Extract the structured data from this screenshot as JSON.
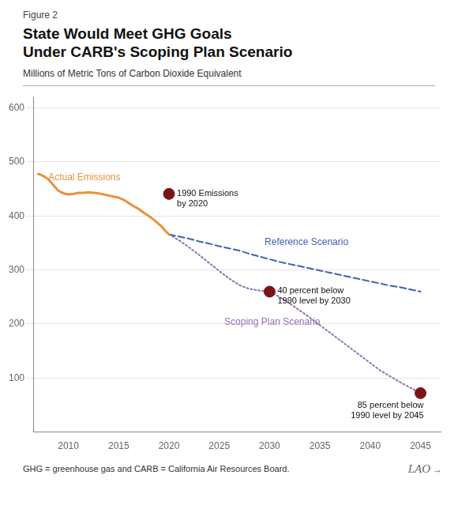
{
  "chart_data": {
    "type": "line",
    "figure_label": "Figure 2",
    "title": "State Would Meet GHG Goals\nUnder CARB's Scoping Plan Scenario",
    "subtitle": "Millions of Metric Tons of Carbon Dioxide Equivalent",
    "footnote": "GHG = greenhouse gas and CARB = California Air Resources Board.",
    "logo": "LAO",
    "logo_mark": "→",
    "series": [
      {
        "name": "Actual Emissions",
        "color": "#e8923c",
        "line_style": "solid",
        "x": [
          2007,
          2007.3,
          2007.7,
          2008,
          2008.3,
          2008.7,
          2009,
          2009.3,
          2009.7,
          2010,
          2010.5,
          2011,
          2011.5,
          2012,
          2012.5,
          2013,
          2013.5,
          2014,
          2014.5,
          2015,
          2015.5,
          2016,
          2016.5,
          2017,
          2017.5,
          2018,
          2018.5,
          2019,
          2019.3,
          2019.6,
          2020
        ],
        "values": [
          478,
          476,
          472,
          468,
          462,
          453,
          447,
          444,
          441,
          440,
          441,
          443,
          443,
          444,
          443,
          442,
          440,
          438,
          436,
          434,
          430,
          424,
          418,
          413,
          406,
          400,
          393,
          385,
          380,
          373,
          366
        ],
        "label_x": 2008.0,
        "label_y": 463
      },
      {
        "name": "Reference Scenario",
        "color": "#4060b8",
        "line_style": "dashed",
        "x": [
          2020,
          2021,
          2022,
          2023,
          2024,
          2025,
          2026,
          2027,
          2028,
          2029,
          2030,
          2031,
          2032,
          2033,
          2034,
          2035,
          2036,
          2037,
          2038,
          2039,
          2040,
          2041,
          2042,
          2043,
          2044,
          2045
        ],
        "values": [
          366,
          362,
          358,
          353,
          349,
          344,
          340,
          336,
          330,
          325,
          320,
          315,
          311,
          307,
          303,
          299,
          295,
          291,
          287,
          283,
          279,
          275,
          271,
          268,
          264,
          260
        ],
        "label_x": 2029.5,
        "label_y": 342
      },
      {
        "name": "Scoping Plan Scenario",
        "color": "#9070b0",
        "line_style": "dotted",
        "x": [
          2020,
          2021,
          2022,
          2023,
          2024,
          2025,
          2026,
          2027,
          2028,
          2029,
          2030,
          2031,
          2032,
          2033,
          2034,
          2035,
          2036,
          2037,
          2038,
          2039,
          2040,
          2041,
          2042,
          2043,
          2044,
          2045
        ],
        "values": [
          366,
          355,
          342,
          328,
          313,
          298,
          284,
          272,
          265,
          262,
          260,
          250,
          238,
          225,
          212,
          198,
          184,
          170,
          156,
          142,
          128,
          114,
          103,
          92,
          82,
          72
        ],
        "label_x": 2025.5,
        "label_y": 195
      },
      {
        "type": "scatter",
        "marker": "circle",
        "color": "#7a1515",
        "x": [
          2020,
          2030,
          2045
        ],
        "values": [
          441,
          260,
          72
        ],
        "labels": [
          "1990 Emissions\nby 2020",
          "40 percent below\n1990 level by 2030",
          "85 percent below\n1990 level by 2045"
        ]
      }
    ],
    "xlim": [
      2006.5,
      2047
    ],
    "xticks": [
      2010,
      2015,
      2020,
      2025,
      2030,
      2035,
      2040,
      2045
    ],
    "ylim": [
      0,
      620
    ],
    "yticks": [
      100,
      200,
      300,
      400,
      500,
      600
    ],
    "grid": "y"
  }
}
